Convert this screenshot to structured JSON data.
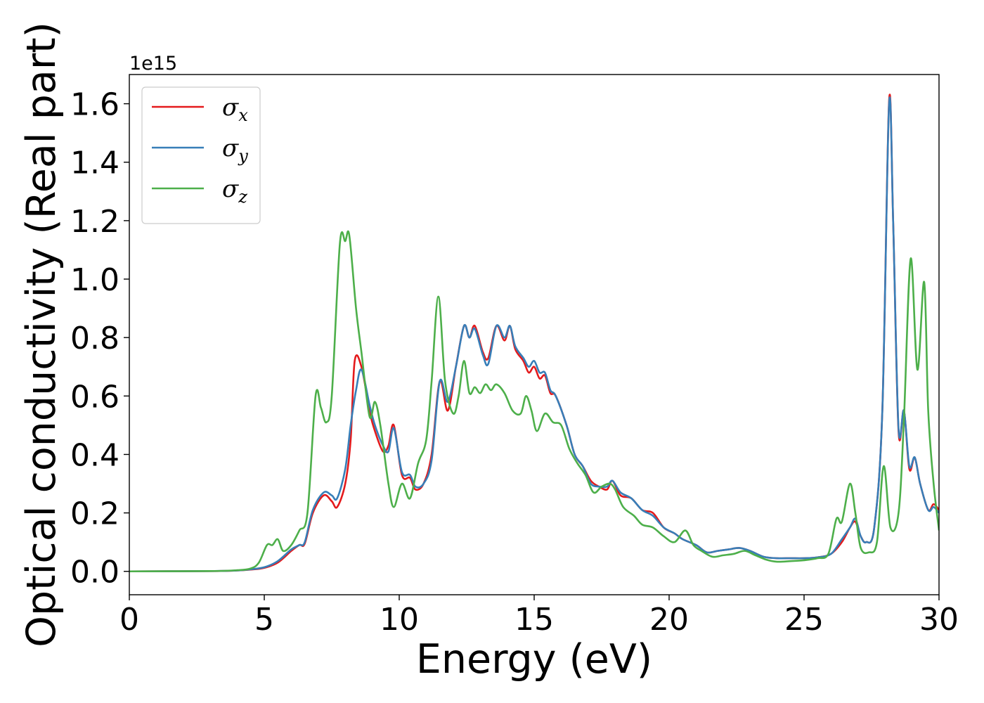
{
  "chart_data": {
    "type": "line",
    "xlabel": "Energy (eV)",
    "ylabel": "Optical conductivity (Real part)",
    "y_offset_label": "1e15",
    "xlim": [
      0,
      30
    ],
    "ylim": [
      -0.08,
      1.7
    ],
    "grid": false,
    "legend_position": "top-left",
    "x_ticks": [
      {
        "value": 0,
        "label": "0"
      },
      {
        "value": 5,
        "label": "5"
      },
      {
        "value": 10,
        "label": "10"
      },
      {
        "value": 15,
        "label": "15"
      },
      {
        "value": 20,
        "label": "20"
      },
      {
        "value": 25,
        "label": "25"
      },
      {
        "value": 30,
        "label": "30"
      }
    ],
    "y_ticks": [
      {
        "value": 0.0,
        "label": "0.0"
      },
      {
        "value": 0.2,
        "label": "0.2"
      },
      {
        "value": 0.4,
        "label": "0.4"
      },
      {
        "value": 0.6,
        "label": "0.6"
      },
      {
        "value": 0.8,
        "label": "0.8"
      },
      {
        "value": 1.0,
        "label": "1.0"
      },
      {
        "value": 1.2,
        "label": "1.2"
      },
      {
        "value": 1.4,
        "label": "1.4"
      },
      {
        "value": 1.6,
        "label": "1.6"
      }
    ],
    "series": [
      {
        "name": "σx",
        "legend_symbol": "σ",
        "legend_subscript": "x",
        "color": "#e41a1c",
        "points": [
          [
            0,
            0
          ],
          [
            3,
            0.001
          ],
          [
            4,
            0.003
          ],
          [
            4.5,
            0.006
          ],
          [
            5,
            0.012
          ],
          [
            5.5,
            0.03
          ],
          [
            6,
            0.07
          ],
          [
            6.3,
            0.09
          ],
          [
            6.5,
            0.095
          ],
          [
            6.8,
            0.2
          ],
          [
            7.2,
            0.26
          ],
          [
            7.5,
            0.24
          ],
          [
            7.7,
            0.22
          ],
          [
            8.0,
            0.3
          ],
          [
            8.2,
            0.45
          ],
          [
            8.35,
            0.72
          ],
          [
            8.6,
            0.7
          ],
          [
            8.9,
            0.55
          ],
          [
            9.1,
            0.48
          ],
          [
            9.4,
            0.41
          ],
          [
            9.6,
            0.43
          ],
          [
            9.8,
            0.5
          ],
          [
            10.1,
            0.33
          ],
          [
            10.4,
            0.32
          ],
          [
            10.6,
            0.28
          ],
          [
            10.9,
            0.3
          ],
          [
            11.2,
            0.4
          ],
          [
            11.5,
            0.65
          ],
          [
            11.8,
            0.55
          ],
          [
            12.1,
            0.7
          ],
          [
            12.4,
            0.84
          ],
          [
            12.6,
            0.8
          ],
          [
            12.8,
            0.84
          ],
          [
            13.1,
            0.75
          ],
          [
            13.3,
            0.73
          ],
          [
            13.6,
            0.84
          ],
          [
            13.9,
            0.79
          ],
          [
            14.1,
            0.84
          ],
          [
            14.3,
            0.76
          ],
          [
            14.6,
            0.72
          ],
          [
            14.8,
            0.68
          ],
          [
            15.0,
            0.7
          ],
          [
            15.2,
            0.66
          ],
          [
            15.4,
            0.67
          ],
          [
            15.6,
            0.61
          ],
          [
            15.8,
            0.6
          ],
          [
            16.2,
            0.5
          ],
          [
            16.5,
            0.4
          ],
          [
            16.8,
            0.36
          ],
          [
            17.1,
            0.31
          ],
          [
            17.4,
            0.29
          ],
          [
            17.7,
            0.28
          ],
          [
            17.9,
            0.31
          ],
          [
            18.2,
            0.26
          ],
          [
            18.6,
            0.25
          ],
          [
            19.0,
            0.21
          ],
          [
            19.4,
            0.2
          ],
          [
            19.8,
            0.15
          ],
          [
            20.2,
            0.13
          ],
          [
            20.5,
            0.11
          ],
          [
            21.0,
            0.09
          ],
          [
            21.4,
            0.065
          ],
          [
            21.8,
            0.07
          ],
          [
            22.2,
            0.075
          ],
          [
            22.6,
            0.08
          ],
          [
            23.0,
            0.07
          ],
          [
            23.5,
            0.05
          ],
          [
            24.0,
            0.045
          ],
          [
            24.5,
            0.045
          ],
          [
            25.0,
            0.045
          ],
          [
            25.5,
            0.048
          ],
          [
            26.0,
            0.06
          ],
          [
            26.4,
            0.1
          ],
          [
            26.7,
            0.15
          ],
          [
            26.9,
            0.17
          ],
          [
            27.1,
            0.12
          ],
          [
            27.3,
            0.1
          ],
          [
            27.6,
            0.15
          ],
          [
            27.9,
            0.55
          ],
          [
            28.15,
            1.61
          ],
          [
            28.3,
            1.2
          ],
          [
            28.5,
            0.48
          ],
          [
            28.7,
            0.55
          ],
          [
            28.9,
            0.35
          ],
          [
            29.1,
            0.39
          ],
          [
            29.3,
            0.3
          ],
          [
            29.6,
            0.21
          ],
          [
            29.8,
            0.23
          ],
          [
            30,
            0.21
          ]
        ]
      },
      {
        "name": "σy",
        "legend_symbol": "σ",
        "legend_subscript": "y",
        "color": "#377eb8",
        "points": [
          [
            0,
            0
          ],
          [
            3,
            0.001
          ],
          [
            4,
            0.003
          ],
          [
            4.5,
            0.007
          ],
          [
            5,
            0.014
          ],
          [
            5.5,
            0.035
          ],
          [
            6,
            0.075
          ],
          [
            6.3,
            0.09
          ],
          [
            6.5,
            0.1
          ],
          [
            6.8,
            0.21
          ],
          [
            7.2,
            0.27
          ],
          [
            7.5,
            0.26
          ],
          [
            7.7,
            0.25
          ],
          [
            8.0,
            0.35
          ],
          [
            8.2,
            0.5
          ],
          [
            8.4,
            0.62
          ],
          [
            8.6,
            0.69
          ],
          [
            8.9,
            0.57
          ],
          [
            9.1,
            0.5
          ],
          [
            9.4,
            0.43
          ],
          [
            9.6,
            0.41
          ],
          [
            9.8,
            0.49
          ],
          [
            10.1,
            0.34
          ],
          [
            10.4,
            0.33
          ],
          [
            10.6,
            0.29
          ],
          [
            10.9,
            0.3
          ],
          [
            11.2,
            0.38
          ],
          [
            11.5,
            0.65
          ],
          [
            11.8,
            0.58
          ],
          [
            12.1,
            0.7
          ],
          [
            12.4,
            0.84
          ],
          [
            12.6,
            0.8
          ],
          [
            12.8,
            0.83
          ],
          [
            13.1,
            0.74
          ],
          [
            13.3,
            0.71
          ],
          [
            13.6,
            0.84
          ],
          [
            13.9,
            0.8
          ],
          [
            14.1,
            0.84
          ],
          [
            14.3,
            0.77
          ],
          [
            14.6,
            0.73
          ],
          [
            14.8,
            0.7
          ],
          [
            15.0,
            0.72
          ],
          [
            15.2,
            0.68
          ],
          [
            15.4,
            0.68
          ],
          [
            15.6,
            0.62
          ],
          [
            15.8,
            0.6
          ],
          [
            16.2,
            0.5
          ],
          [
            16.5,
            0.4
          ],
          [
            16.8,
            0.36
          ],
          [
            17.1,
            0.3
          ],
          [
            17.4,
            0.29
          ],
          [
            17.7,
            0.29
          ],
          [
            17.9,
            0.31
          ],
          [
            18.2,
            0.27
          ],
          [
            18.6,
            0.25
          ],
          [
            19.0,
            0.21
          ],
          [
            19.4,
            0.19
          ],
          [
            19.8,
            0.15
          ],
          [
            20.2,
            0.13
          ],
          [
            20.5,
            0.11
          ],
          [
            21.0,
            0.09
          ],
          [
            21.4,
            0.065
          ],
          [
            21.8,
            0.07
          ],
          [
            22.2,
            0.075
          ],
          [
            22.6,
            0.08
          ],
          [
            23.0,
            0.07
          ],
          [
            23.5,
            0.05
          ],
          [
            24.0,
            0.045
          ],
          [
            24.5,
            0.045
          ],
          [
            25.0,
            0.045
          ],
          [
            25.5,
            0.048
          ],
          [
            26.0,
            0.06
          ],
          [
            26.4,
            0.11
          ],
          [
            26.7,
            0.15
          ],
          [
            26.9,
            0.18
          ],
          [
            27.1,
            0.12
          ],
          [
            27.3,
            0.1
          ],
          [
            27.6,
            0.15
          ],
          [
            27.9,
            0.55
          ],
          [
            28.15,
            1.6
          ],
          [
            28.3,
            1.2
          ],
          [
            28.5,
            0.49
          ],
          [
            28.7,
            0.55
          ],
          [
            28.9,
            0.36
          ],
          [
            29.1,
            0.39
          ],
          [
            29.3,
            0.3
          ],
          [
            29.6,
            0.21
          ],
          [
            29.8,
            0.22
          ],
          [
            30,
            0.2
          ]
        ]
      },
      {
        "name": "σz",
        "legend_symbol": "σ",
        "legend_subscript": "z",
        "color": "#4daf4a",
        "points": [
          [
            0,
            0
          ],
          [
            3,
            0.001
          ],
          [
            4,
            0.004
          ],
          [
            4.5,
            0.01
          ],
          [
            4.8,
            0.03
          ],
          [
            5.1,
            0.09
          ],
          [
            5.3,
            0.09
          ],
          [
            5.5,
            0.11
          ],
          [
            5.7,
            0.07
          ],
          [
            6.0,
            0.09
          ],
          [
            6.3,
            0.14
          ],
          [
            6.6,
            0.2
          ],
          [
            6.9,
            0.6
          ],
          [
            7.1,
            0.56
          ],
          [
            7.3,
            0.51
          ],
          [
            7.5,
            0.6
          ],
          [
            7.8,
            1.12
          ],
          [
            8.0,
            1.13
          ],
          [
            8.15,
            1.15
          ],
          [
            8.4,
            0.9
          ],
          [
            8.6,
            0.75
          ],
          [
            8.9,
            0.53
          ],
          [
            9.1,
            0.58
          ],
          [
            9.3,
            0.5
          ],
          [
            9.6,
            0.3
          ],
          [
            9.8,
            0.22
          ],
          [
            10.1,
            0.3
          ],
          [
            10.4,
            0.25
          ],
          [
            10.7,
            0.37
          ],
          [
            11.0,
            0.45
          ],
          [
            11.2,
            0.65
          ],
          [
            11.45,
            0.94
          ],
          [
            11.7,
            0.65
          ],
          [
            12.0,
            0.54
          ],
          [
            12.2,
            0.6
          ],
          [
            12.4,
            0.72
          ],
          [
            12.6,
            0.61
          ],
          [
            12.8,
            0.63
          ],
          [
            13.0,
            0.61
          ],
          [
            13.2,
            0.64
          ],
          [
            13.4,
            0.62
          ],
          [
            13.6,
            0.64
          ],
          [
            13.9,
            0.61
          ],
          [
            14.2,
            0.55
          ],
          [
            14.5,
            0.54
          ],
          [
            14.7,
            0.6
          ],
          [
            14.9,
            0.55
          ],
          [
            15.1,
            0.48
          ],
          [
            15.4,
            0.54
          ],
          [
            15.7,
            0.51
          ],
          [
            16.0,
            0.5
          ],
          [
            16.3,
            0.42
          ],
          [
            16.6,
            0.37
          ],
          [
            16.9,
            0.33
          ],
          [
            17.2,
            0.27
          ],
          [
            17.5,
            0.29
          ],
          [
            17.8,
            0.3
          ],
          [
            18.0,
            0.28
          ],
          [
            18.3,
            0.22
          ],
          [
            18.7,
            0.19
          ],
          [
            19.0,
            0.16
          ],
          [
            19.4,
            0.15
          ],
          [
            19.8,
            0.12
          ],
          [
            20.2,
            0.1
          ],
          [
            20.6,
            0.14
          ],
          [
            20.9,
            0.09
          ],
          [
            21.2,
            0.07
          ],
          [
            21.6,
            0.05
          ],
          [
            22.0,
            0.055
          ],
          [
            22.4,
            0.06
          ],
          [
            22.8,
            0.07
          ],
          [
            23.2,
            0.055
          ],
          [
            23.6,
            0.04
          ],
          [
            24.0,
            0.033
          ],
          [
            24.5,
            0.035
          ],
          [
            25.0,
            0.038
          ],
          [
            25.5,
            0.045
          ],
          [
            25.9,
            0.06
          ],
          [
            26.2,
            0.18
          ],
          [
            26.4,
            0.17
          ],
          [
            26.7,
            0.3
          ],
          [
            26.9,
            0.2
          ],
          [
            27.1,
            0.08
          ],
          [
            27.4,
            0.065
          ],
          [
            27.7,
            0.1
          ],
          [
            27.95,
            0.36
          ],
          [
            28.2,
            0.15
          ],
          [
            28.5,
            0.2
          ],
          [
            28.7,
            0.52
          ],
          [
            28.95,
            1.07
          ],
          [
            29.2,
            0.69
          ],
          [
            29.45,
            0.99
          ],
          [
            29.6,
            0.55
          ],
          [
            29.8,
            0.3
          ],
          [
            30,
            0.14
          ]
        ]
      }
    ]
  }
}
